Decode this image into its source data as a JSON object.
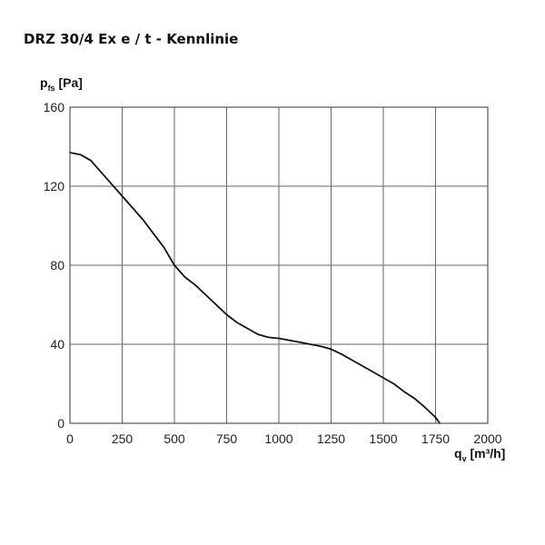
{
  "title": "DRZ 30/4 Ex e / t - Kennlinie",
  "chart_data": {
    "type": "line",
    "title": "DRZ 30/4 Ex e / t - Kennlinie",
    "ylabel": {
      "symbol": "p",
      "sub": "fs",
      "unit": "[Pa]"
    },
    "xlabel": {
      "symbol": "q",
      "sub": "v",
      "unit": "[m³/h]"
    },
    "xlim": [
      0,
      2000
    ],
    "ylim": [
      0,
      160
    ],
    "x_ticks": [
      "0",
      "250",
      "500",
      "750",
      "1000",
      "1250",
      "1500",
      "1750",
      "2000"
    ],
    "y_ticks": [
      "0",
      "40",
      "80",
      "120",
      "160"
    ],
    "grid": true,
    "series": [
      {
        "color": "#111111",
        "x": [
          0,
          50,
          100,
          150,
          200,
          250,
          300,
          350,
          400,
          450,
          500,
          550,
          600,
          650,
          700,
          750,
          800,
          850,
          900,
          950,
          1000,
          1050,
          1100,
          1150,
          1200,
          1250,
          1300,
          1350,
          1400,
          1450,
          1500,
          1550,
          1600,
          1650,
          1700,
          1750,
          1770
        ],
        "y": [
          137,
          136,
          133,
          127,
          121,
          115,
          109,
          103,
          96,
          89,
          80,
          74,
          70,
          65,
          60,
          55,
          51,
          48,
          45,
          43.5,
          43,
          42,
          41,
          40,
          39,
          37.5,
          35,
          32,
          29,
          26,
          23,
          20,
          16,
          12.5,
          8,
          3,
          0
        ]
      }
    ]
  }
}
